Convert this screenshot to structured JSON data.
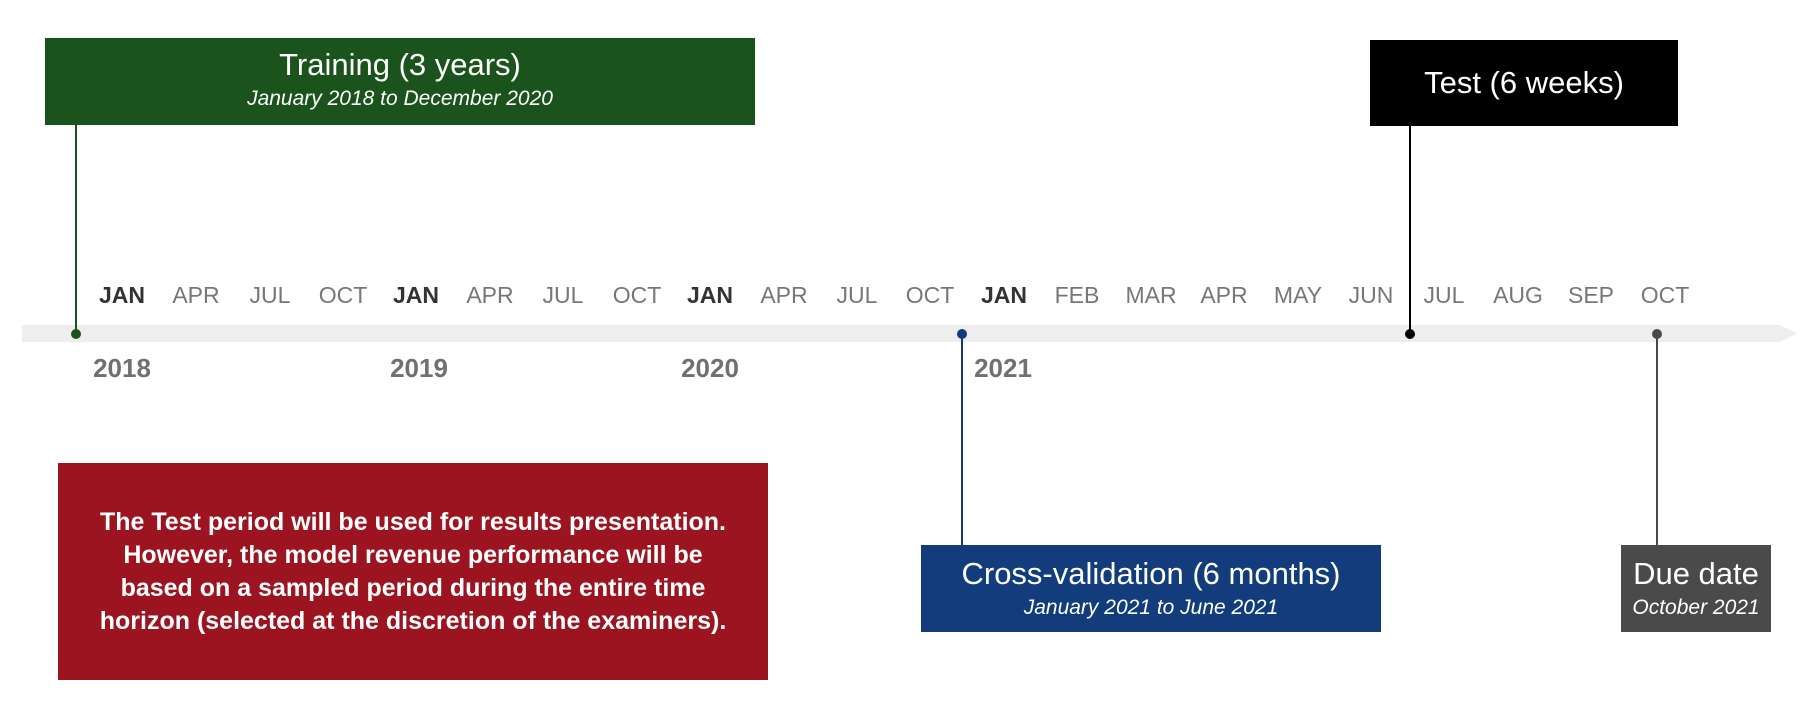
{
  "colors": {
    "training": "#1a531b",
    "test": "#000000",
    "cross_validation": "#123c7c",
    "due_date": "#4a4a4a",
    "note": "#9b141f",
    "timeline_bar": "#eeeeee",
    "month_label": "#777777",
    "jan_label": "#333333",
    "year_label": "#707070"
  },
  "training": {
    "title": "Training (3 years)",
    "subtitle": "January 2018 to December 2020"
  },
  "test": {
    "title": "Test (6 weeks)"
  },
  "cross_validation": {
    "title": "Cross-validation (6 months)",
    "subtitle": "January 2021 to June 2021"
  },
  "due_date": {
    "title": "Due date",
    "subtitle": "October 2021"
  },
  "note": {
    "text": "The Test period will be used for results presentation. However, the model revenue performance will be based on a sampled period during the entire time horizon (selected at the discretion of the examiners)."
  },
  "timeline": {
    "months": [
      "JAN",
      "APR",
      "JUL",
      "OCT",
      "JAN",
      "APR",
      "JUL",
      "OCT",
      "JAN",
      "APR",
      "JUL",
      "OCT",
      "JAN",
      "FEB",
      "MAR",
      "APR",
      "MAY",
      "JUN",
      "JUL",
      "AUG",
      "SEP",
      "OCT"
    ],
    "years": [
      "2018",
      "2019",
      "2020",
      "2021"
    ]
  }
}
